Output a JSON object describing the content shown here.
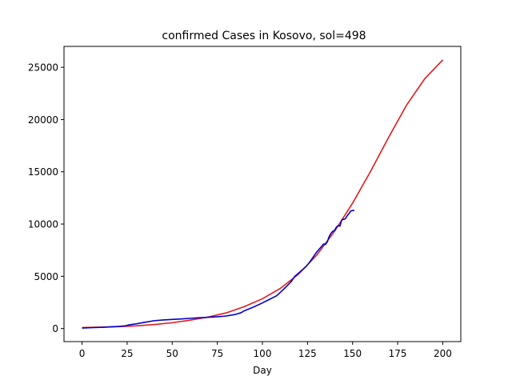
{
  "chart_data": {
    "type": "line",
    "title": "confirmed Cases in Kosovo, sol=498",
    "xlabel": "Day",
    "ylabel": "",
    "xlim": [
      -10,
      210
    ],
    "ylim": [
      -1250,
      27000
    ],
    "xticks": [
      0,
      25,
      50,
      75,
      100,
      125,
      150,
      175,
      200
    ],
    "yticks": [
      0,
      5000,
      10000,
      15000,
      20000,
      25000
    ],
    "grid": false,
    "legend": "none",
    "series": [
      {
        "color": "#e31a1c",
        "x": [
          0,
          10,
          20,
          30,
          40,
          50,
          60,
          70,
          80,
          90,
          100,
          110,
          120,
          130,
          140,
          150,
          160,
          170,
          180,
          190,
          200
        ],
        "y": [
          100,
          130,
          180,
          260,
          380,
          560,
          800,
          1100,
          1500,
          2100,
          2850,
          3850,
          5200,
          7000,
          9300,
          12000,
          15050,
          18300,
          21400,
          23900,
          25700
        ]
      },
      {
        "color": "#0000cc",
        "x": [
          0,
          5,
          10,
          15,
          20,
          24,
          26,
          30,
          35,
          40,
          45,
          50,
          55,
          60,
          65,
          70,
          75,
          80,
          85,
          88,
          90,
          95,
          100,
          104,
          108,
          112,
          116,
          118,
          120,
          124,
          126,
          128,
          130,
          132,
          134,
          135,
          136,
          137,
          138,
          139,
          140,
          141,
          142,
          143,
          144,
          145,
          146,
          147,
          148,
          149,
          150,
          151
        ],
        "y": [
          50,
          80,
          110,
          150,
          200,
          260,
          350,
          450,
          600,
          750,
          820,
          870,
          920,
          980,
          1030,
          1080,
          1130,
          1200,
          1350,
          1500,
          1700,
          2050,
          2450,
          2800,
          3150,
          3800,
          4500,
          5000,
          5300,
          5900,
          6300,
          6800,
          7300,
          7700,
          8100,
          8050,
          8300,
          8800,
          9100,
          9300,
          9400,
          9700,
          9850,
          9800,
          10400,
          10450,
          10500,
          10800,
          11000,
          11250,
          11300,
          11300
        ]
      }
    ]
  }
}
